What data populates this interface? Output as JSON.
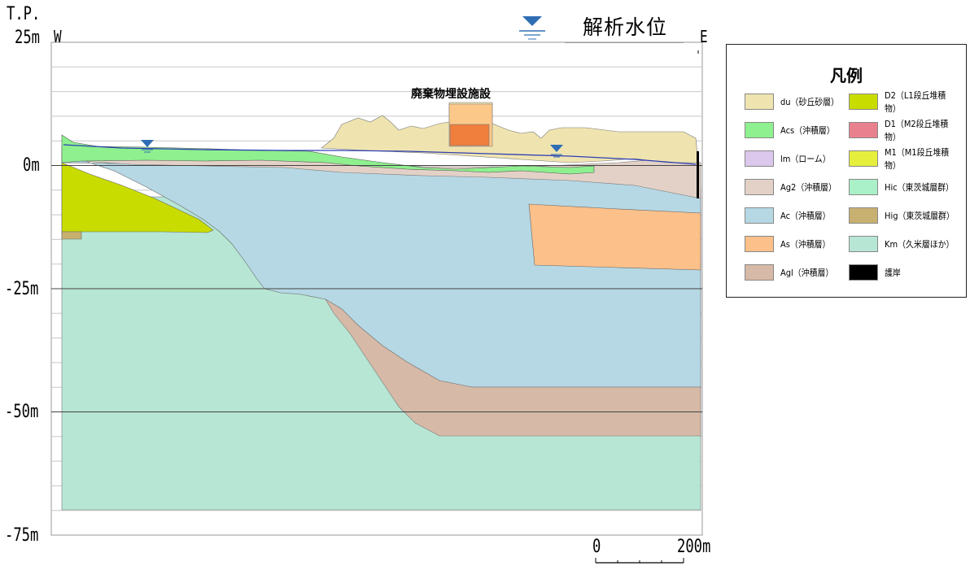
{
  "axis": {
    "tp_label": "T.P.",
    "tick_25": "25m",
    "tick_0": "0m",
    "tick_m25": "-25m",
    "tick_m50": "-50m",
    "tick_m75": "-75m",
    "west": "W",
    "east": "E"
  },
  "water_level_legend": {
    "label": "解析水位",
    "color": "#2e6db4"
  },
  "facility_label": "廃棄物埋設施設",
  "legend": {
    "title": "凡例",
    "items": [
      {
        "label": "du（砂丘砂層）",
        "color": "#efe4b0"
      },
      {
        "label": "D2（L1段丘堆積物）",
        "color": "#c8dc00"
      },
      {
        "label": "Acs（沖積層）",
        "color": "#8ef08e"
      },
      {
        "label": "D1（M2段丘堆積物）",
        "color": "#e9808e"
      },
      {
        "label": "lm（ローム）",
        "color": "#dcc8ec"
      },
      {
        "label": "M1（M1段丘堆積物）",
        "color": "#e6f03c"
      },
      {
        "label": "Ag2（沖積層）",
        "color": "#e3d1c7"
      },
      {
        "label": "Hic（東茨城層群）",
        "color": "#aaf0c8"
      },
      {
        "label": "Ac（沖積層）",
        "color": "#b6d8e4"
      },
      {
        "label": "Hig（東茨城層群）",
        "color": "#c8b070"
      },
      {
        "label": "As（沖積層）",
        "color": "#fcc08a"
      },
      {
        "label": "Km（久米層ほか）",
        "color": "#b7e6d4"
      },
      {
        "label": "Agl（沖積層）",
        "color": "#d6b9a7"
      },
      {
        "label": "護岸",
        "color": "#000000"
      }
    ]
  },
  "colors": {
    "facility_top": "#f07e3c",
    "facility_body": "#fcc88a",
    "water_line": "#2e3fb4",
    "grid": "#c8c8c8",
    "grid_major": "#444444"
  },
  "scalebar": {
    "start": "0",
    "end": "200m"
  }
}
